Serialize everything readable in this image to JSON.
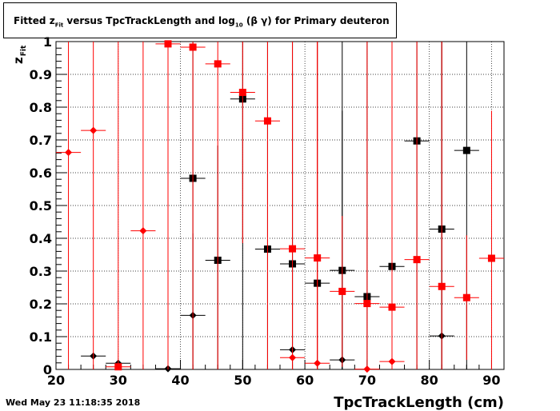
{
  "title": {
    "prefix": "Fitted",
    "z_main": "z",
    "z_sub": "Fit",
    "mid": "versus TpcTrackLength and log",
    "log_sub": "10",
    "suffix": "(β γ) for Primary deuteron"
  },
  "datestamp": "Wed May 23 11:18:35 2018",
  "chart_data": {
    "type": "scatter",
    "title": "Fitted z_Fit versus TpcTrackLength and log_10 (β γ) for Primary deuteron",
    "xlabel": "TpcTrackLength (cm)",
    "ylabel": "z_Fit",
    "xlim": [
      20,
      92
    ],
    "ylim": [
      0,
      1
    ],
    "x_ticks": [
      20,
      30,
      40,
      50,
      60,
      70,
      80,
      90
    ],
    "y_ticks": [
      0,
      0.1,
      0.2,
      0.3,
      0.4,
      0.5,
      0.6,
      0.7,
      0.8,
      0.9,
      1
    ],
    "x_tick_labels": [
      "20",
      "30",
      "40",
      "50",
      "60",
      "70",
      "80",
      "90"
    ],
    "y_tick_labels": [
      "0",
      "0.1",
      "0.2",
      "0.3",
      "0.4",
      "0.5",
      "0.6",
      "0.7",
      "0.8",
      "0.9",
      "1"
    ],
    "grid": true,
    "x_error": 2,
    "series": [
      {
        "color": "#000000",
        "marker": "square",
        "points": [
          {
            "x": 42,
            "y": 0.583,
            "err": 1.0
          },
          {
            "x": 46,
            "y": 0.333,
            "err": 0.35
          },
          {
            "x": 50,
            "y": 0.825,
            "err": 1.0
          },
          {
            "x": 54,
            "y": 0.367,
            "err": 1.0
          },
          {
            "x": 58,
            "y": 0.322,
            "err": 1.0
          },
          {
            "x": 62,
            "y": 0.263,
            "err": 1.0
          },
          {
            "x": 66,
            "y": 0.302,
            "err": 1.0
          },
          {
            "x": 70,
            "y": 0.222,
            "err": 1.0
          },
          {
            "x": 74,
            "y": 0.314,
            "err": 1.0
          },
          {
            "x": 78,
            "y": 0.697,
            "err": 1.0
          },
          {
            "x": 82,
            "y": 0.428,
            "err": 1.0
          },
          {
            "x": 86,
            "y": 0.668,
            "err": 1.0
          }
        ]
      },
      {
        "color": "#000000",
        "marker": "diamond",
        "points": [
          {
            "x": 26,
            "y": 0.041,
            "err": 0.0
          },
          {
            "x": 30,
            "y": 0.019,
            "err": 0.0
          },
          {
            "x": 38,
            "y": 0.002,
            "err": 0.0
          },
          {
            "x": 42,
            "y": 0.165,
            "err": 0.25
          },
          {
            "x": 58,
            "y": 0.06,
            "err": 0.85
          },
          {
            "x": 66,
            "y": 0.029,
            "err": 0.76
          },
          {
            "x": 82,
            "y": 0.102,
            "err": 1.0
          }
        ]
      },
      {
        "color": "#ff0000",
        "marker": "square",
        "points": [
          {
            "x": 30,
            "y": 0.008,
            "err": 1.0
          },
          {
            "x": 38,
            "y": 0.993,
            "err": 1.0
          },
          {
            "x": 42,
            "y": 0.983,
            "err": 1.0
          },
          {
            "x": 46,
            "y": 0.932,
            "err": 1.0
          },
          {
            "x": 50,
            "y": 0.845,
            "err": 0.46
          },
          {
            "x": 54,
            "y": 0.758,
            "err": 1.0
          },
          {
            "x": 58,
            "y": 0.368,
            "err": 1.0
          },
          {
            "x": 62,
            "y": 0.34,
            "err": 1.0
          },
          {
            "x": 66,
            "y": 0.238,
            "err": 0.23
          },
          {
            "x": 70,
            "y": 0.201,
            "err": 1.0
          },
          {
            "x": 74,
            "y": 0.19,
            "err": 1.0
          },
          {
            "x": 78,
            "y": 0.335,
            "err": 1.0
          },
          {
            "x": 82,
            "y": 0.253,
            "err": 1.0
          },
          {
            "x": 86,
            "y": 0.219,
            "err": 0.19
          },
          {
            "x": 90,
            "y": 0.339,
            "err": 0.45
          }
        ]
      },
      {
        "color": "#ff0000",
        "marker": "diamond",
        "points": [
          {
            "x": 22,
            "y": 0.662,
            "err": 1.0
          },
          {
            "x": 26,
            "y": 0.729,
            "err": 1.0
          },
          {
            "x": 34,
            "y": 0.423,
            "err": 1.0
          },
          {
            "x": 58,
            "y": 0.036,
            "err": 0.0
          },
          {
            "x": 62,
            "y": 0.019,
            "err": 1.0
          },
          {
            "x": 70,
            "y": 0.001,
            "err": 0.0
          },
          {
            "x": 74,
            "y": 0.024,
            "err": 0.0
          }
        ]
      }
    ]
  }
}
